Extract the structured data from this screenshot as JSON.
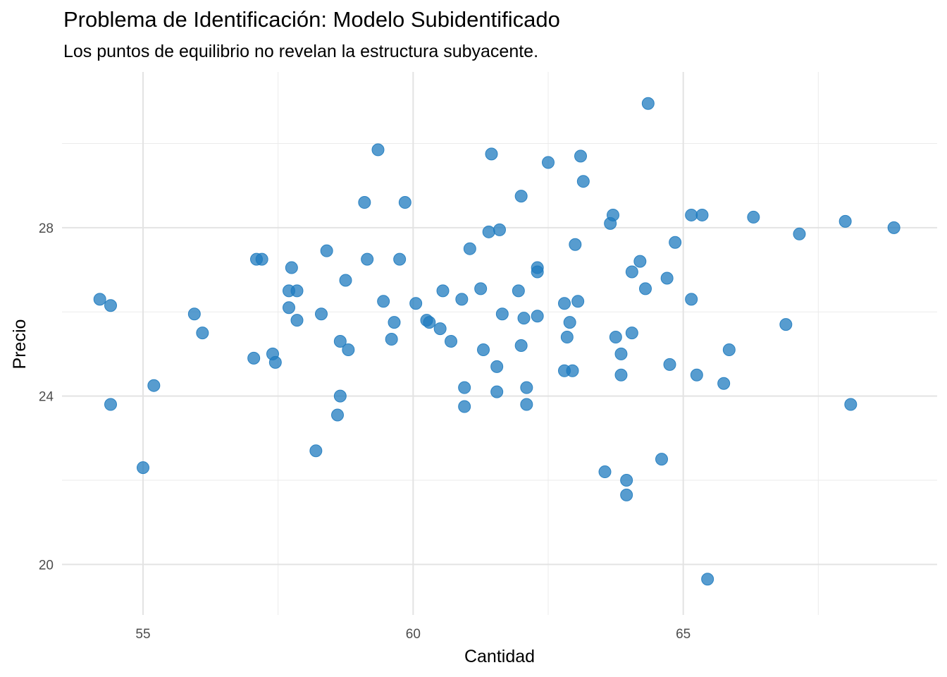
{
  "chart_data": {
    "type": "scatter",
    "title": "Problema de Identificación: Modelo Subidentificado",
    "subtitle": "Los puntos de equilibrio no revelan la estructura subyacente.",
    "xlabel": "Cantidad",
    "ylabel": "Precio",
    "xlim": [
      53.5,
      69.7
    ],
    "ylim": [
      18.8,
      31.7
    ],
    "x_ticks": [
      55,
      60,
      65
    ],
    "y_ticks": [
      20,
      24,
      28
    ],
    "grid": true,
    "point_color": "#1f7bbf",
    "points": [
      {
        "x": 54.2,
        "y": 26.3
      },
      {
        "x": 54.4,
        "y": 26.15
      },
      {
        "x": 54.4,
        "y": 23.8
      },
      {
        "x": 55.0,
        "y": 22.3
      },
      {
        "x": 55.2,
        "y": 24.25
      },
      {
        "x": 55.95,
        "y": 25.95
      },
      {
        "x": 56.1,
        "y": 25.5
      },
      {
        "x": 57.05,
        "y": 24.9
      },
      {
        "x": 57.1,
        "y": 27.25
      },
      {
        "x": 57.2,
        "y": 27.25
      },
      {
        "x": 57.4,
        "y": 25.0
      },
      {
        "x": 57.45,
        "y": 24.8
      },
      {
        "x": 57.7,
        "y": 26.1
      },
      {
        "x": 57.7,
        "y": 26.5
      },
      {
        "x": 57.75,
        "y": 27.05
      },
      {
        "x": 57.85,
        "y": 25.8
      },
      {
        "x": 57.85,
        "y": 26.5
      },
      {
        "x": 58.2,
        "y": 22.7
      },
      {
        "x": 58.3,
        "y": 25.95
      },
      {
        "x": 58.4,
        "y": 27.45
      },
      {
        "x": 58.6,
        "y": 23.55
      },
      {
        "x": 58.65,
        "y": 24.0
      },
      {
        "x": 58.65,
        "y": 25.3
      },
      {
        "x": 58.75,
        "y": 26.75
      },
      {
        "x": 58.8,
        "y": 25.1
      },
      {
        "x": 59.1,
        "y": 28.6
      },
      {
        "x": 59.15,
        "y": 27.25
      },
      {
        "x": 59.35,
        "y": 29.85
      },
      {
        "x": 59.45,
        "y": 26.25
      },
      {
        "x": 59.6,
        "y": 25.35
      },
      {
        "x": 59.65,
        "y": 25.75
      },
      {
        "x": 59.75,
        "y": 27.25
      },
      {
        "x": 59.85,
        "y": 28.6
      },
      {
        "x": 60.05,
        "y": 26.2
      },
      {
        "x": 60.25,
        "y": 25.8
      },
      {
        "x": 60.3,
        "y": 25.75
      },
      {
        "x": 60.5,
        "y": 25.6
      },
      {
        "x": 60.55,
        "y": 26.5
      },
      {
        "x": 60.7,
        "y": 25.3
      },
      {
        "x": 60.9,
        "y": 26.3
      },
      {
        "x": 60.95,
        "y": 24.2
      },
      {
        "x": 60.95,
        "y": 23.75
      },
      {
        "x": 61.05,
        "y": 27.5
      },
      {
        "x": 61.25,
        "y": 26.55
      },
      {
        "x": 61.3,
        "y": 25.1
      },
      {
        "x": 61.4,
        "y": 27.9
      },
      {
        "x": 61.45,
        "y": 29.75
      },
      {
        "x": 61.55,
        "y": 24.7
      },
      {
        "x": 61.55,
        "y": 24.1
      },
      {
        "x": 61.6,
        "y": 27.95
      },
      {
        "x": 61.65,
        "y": 25.95
      },
      {
        "x": 61.95,
        "y": 26.5
      },
      {
        "x": 62.0,
        "y": 28.75
      },
      {
        "x": 62.0,
        "y": 25.2
      },
      {
        "x": 62.05,
        "y": 25.85
      },
      {
        "x": 62.1,
        "y": 24.2
      },
      {
        "x": 62.1,
        "y": 23.8
      },
      {
        "x": 62.3,
        "y": 27.05
      },
      {
        "x": 62.3,
        "y": 26.95
      },
      {
        "x": 62.3,
        "y": 25.9
      },
      {
        "x": 62.5,
        "y": 29.55
      },
      {
        "x": 62.8,
        "y": 24.6
      },
      {
        "x": 62.8,
        "y": 26.2
      },
      {
        "x": 62.85,
        "y": 25.4
      },
      {
        "x": 62.9,
        "y": 25.75
      },
      {
        "x": 62.95,
        "y": 24.6
      },
      {
        "x": 63.0,
        "y": 27.6
      },
      {
        "x": 63.05,
        "y": 26.25
      },
      {
        "x": 63.1,
        "y": 29.7
      },
      {
        "x": 63.15,
        "y": 29.1
      },
      {
        "x": 63.55,
        "y": 22.2
      },
      {
        "x": 63.65,
        "y": 28.1
      },
      {
        "x": 63.7,
        "y": 28.3
      },
      {
        "x": 63.75,
        "y": 25.4
      },
      {
        "x": 63.85,
        "y": 24.5
      },
      {
        "x": 63.85,
        "y": 25.0
      },
      {
        "x": 63.95,
        "y": 21.65
      },
      {
        "x": 63.95,
        "y": 22.0
      },
      {
        "x": 64.05,
        "y": 25.5
      },
      {
        "x": 64.05,
        "y": 26.95
      },
      {
        "x": 64.2,
        "y": 27.2
      },
      {
        "x": 64.3,
        "y": 26.55
      },
      {
        "x": 64.35,
        "y": 30.95
      },
      {
        "x": 64.6,
        "y": 22.5
      },
      {
        "x": 64.7,
        "y": 26.8
      },
      {
        "x": 64.75,
        "y": 24.75
      },
      {
        "x": 64.85,
        "y": 27.65
      },
      {
        "x": 65.15,
        "y": 26.3
      },
      {
        "x": 65.15,
        "y": 28.3
      },
      {
        "x": 65.25,
        "y": 24.5
      },
      {
        "x": 65.35,
        "y": 28.3
      },
      {
        "x": 65.45,
        "y": 19.65
      },
      {
        "x": 65.75,
        "y": 24.3
      },
      {
        "x": 65.85,
        "y": 25.1
      },
      {
        "x": 66.3,
        "y": 28.25
      },
      {
        "x": 66.9,
        "y": 25.7
      },
      {
        "x": 67.15,
        "y": 27.85
      },
      {
        "x": 68.0,
        "y": 28.15
      },
      {
        "x": 68.1,
        "y": 23.8
      },
      {
        "x": 68.9,
        "y": 28.0
      }
    ]
  }
}
